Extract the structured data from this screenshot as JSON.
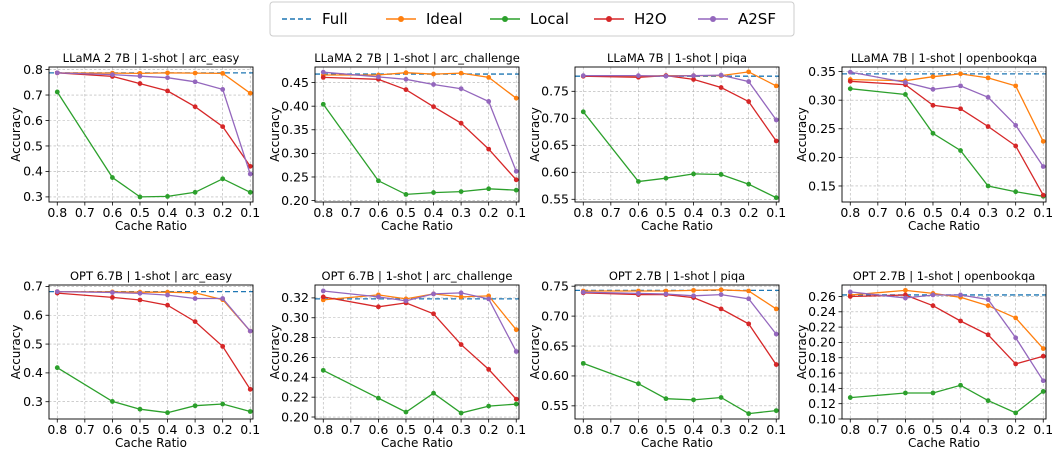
{
  "legend": {
    "entries": [
      {
        "name": "Full",
        "color": "#1f77b4",
        "style": "dashed"
      },
      {
        "name": "Ideal",
        "color": "#ff7f0e",
        "style": "line-marker"
      },
      {
        "name": "Local",
        "color": "#2ca02c",
        "style": "line-marker"
      },
      {
        "name": "H2O",
        "color": "#d62728",
        "style": "line-marker"
      },
      {
        "name": "A2SF",
        "color": "#9467bd",
        "style": "line-marker"
      }
    ],
    "placement": "top-center"
  },
  "chart_data": [
    {
      "type": "line",
      "title": "LLaMA 2 7B | 1-shot | arc_easy",
      "xlabel": "Cache Ratio",
      "ylabel": "Accuracy",
      "x": [
        0.8,
        0.6,
        0.5,
        0.4,
        0.3,
        0.2,
        0.1
      ],
      "xticks": [
        "0.8",
        "0.7",
        "0.6",
        "0.5",
        "0.4",
        "0.3",
        "0.2",
        "0.1"
      ],
      "xlim": [
        0.83,
        0.09
      ],
      "ylim": [
        0.28,
        0.81
      ],
      "yticks": [
        "0.3",
        "0.4",
        "0.5",
        "0.6",
        "0.7",
        "0.8"
      ],
      "full": 0.787,
      "series": [
        {
          "name": "Ideal",
          "values": [
            0.787,
            0.786,
            0.785,
            0.787,
            0.786,
            0.785,
            0.707
          ]
        },
        {
          "name": "Local",
          "values": [
            0.712,
            0.376,
            0.3,
            0.302,
            0.318,
            0.371,
            0.318
          ]
        },
        {
          "name": "H2O",
          "values": [
            0.787,
            0.773,
            0.745,
            0.716,
            0.654,
            0.576,
            0.42
          ]
        },
        {
          "name": "A2SF",
          "values": [
            0.787,
            0.78,
            0.774,
            0.768,
            0.752,
            0.722,
            0.39
          ]
        }
      ],
      "grid": true
    },
    {
      "type": "line",
      "title": "LLaMA 2 7B | 1-shot | arc_challenge",
      "xlabel": "Cache Ratio",
      "ylabel": "Accuracy",
      "x": [
        0.8,
        0.6,
        0.5,
        0.4,
        0.3,
        0.2,
        0.1
      ],
      "xticks": [
        "0.8",
        "0.7",
        "0.6",
        "0.5",
        "0.4",
        "0.3",
        "0.2",
        "0.1"
      ],
      "xlim": [
        0.83,
        0.09
      ],
      "ylim": [
        0.197,
        0.483
      ],
      "yticks": [
        "0.20",
        "0.25",
        "0.30",
        "0.35",
        "0.40",
        "0.45"
      ],
      "full": 0.468,
      "series": [
        {
          "name": "Ideal",
          "values": [
            0.466,
            0.466,
            0.471,
            0.468,
            0.47,
            0.461,
            0.417
          ]
        },
        {
          "name": "Local",
          "values": [
            0.404,
            0.242,
            0.213,
            0.217,
            0.219,
            0.225,
            0.222
          ]
        },
        {
          "name": "H2O",
          "values": [
            0.461,
            0.457,
            0.435,
            0.399,
            0.364,
            0.309,
            0.244
          ]
        },
        {
          "name": "A2SF",
          "values": [
            0.472,
            0.462,
            0.457,
            0.446,
            0.437,
            0.41,
            0.262
          ]
        }
      ],
      "grid": true
    },
    {
      "type": "line",
      "title": "LLaMA 7B | 1-shot | piqa",
      "xlabel": "Cache Ratio",
      "ylabel": "Accuracy",
      "x": [
        0.8,
        0.6,
        0.5,
        0.4,
        0.3,
        0.2,
        0.1
      ],
      "xticks": [
        "0.8",
        "0.7",
        "0.6",
        "0.5",
        "0.4",
        "0.3",
        "0.2",
        "0.1"
      ],
      "xlim": [
        0.83,
        0.09
      ],
      "ylim": [
        0.545,
        0.795
      ],
      "yticks": [
        "0.55",
        "0.60",
        "0.65",
        "0.70",
        "0.75"
      ],
      "full": 0.778,
      "series": [
        {
          "name": "Ideal",
          "values": [
            0.778,
            0.778,
            0.779,
            0.779,
            0.779,
            0.786,
            0.76
          ]
        },
        {
          "name": "Local",
          "values": [
            0.712,
            0.583,
            0.589,
            0.597,
            0.596,
            0.578,
            0.553
          ]
        },
        {
          "name": "H2O",
          "values": [
            0.778,
            0.776,
            0.779,
            0.772,
            0.757,
            0.731,
            0.658
          ]
        },
        {
          "name": "A2SF",
          "values": [
            0.779,
            0.779,
            0.778,
            0.779,
            0.78,
            0.768,
            0.697
          ]
        }
      ],
      "grid": true
    },
    {
      "type": "line",
      "title": "LLaMA 7B | 1-shot | openbookqa",
      "xlabel": "Cache Ratio",
      "ylabel": "Accuracy",
      "x": [
        0.8,
        0.6,
        0.5,
        0.4,
        0.3,
        0.2,
        0.1
      ],
      "xticks": [
        "0.8",
        "0.7",
        "0.6",
        "0.5",
        "0.4",
        "0.3",
        "0.2",
        "0.1"
      ],
      "xlim": [
        0.83,
        0.09
      ],
      "ylim": [
        0.122,
        0.358
      ],
      "yticks": [
        "0.15",
        "0.20",
        "0.25",
        "0.30",
        "0.35"
      ],
      "full": 0.346,
      "series": [
        {
          "name": "Ideal",
          "values": [
            0.336,
            0.334,
            0.341,
            0.346,
            0.339,
            0.325,
            0.228
          ]
        },
        {
          "name": "Local",
          "values": [
            0.32,
            0.31,
            0.242,
            0.212,
            0.15,
            0.14,
            0.132
          ]
        },
        {
          "name": "H2O",
          "values": [
            0.333,
            0.327,
            0.291,
            0.285,
            0.254,
            0.22,
            0.134
          ]
        },
        {
          "name": "A2SF",
          "values": [
            0.349,
            0.331,
            0.319,
            0.325,
            0.305,
            0.256,
            0.184
          ]
        }
      ],
      "grid": true
    },
    {
      "type": "line",
      "title": "OPT 6.7B | 1-shot | arc_easy",
      "xlabel": "Cache Ratio",
      "ylabel": "Accuracy",
      "x": [
        0.8,
        0.6,
        0.5,
        0.4,
        0.3,
        0.2,
        0.1
      ],
      "xticks": [
        "0.8",
        "0.7",
        "0.6",
        "0.5",
        "0.4",
        "0.3",
        "0.2",
        "0.1"
      ],
      "xlim": [
        0.83,
        0.09
      ],
      "ylim": [
        0.24,
        0.705
      ],
      "yticks": [
        "0.3",
        "0.4",
        "0.5",
        "0.6",
        "0.7"
      ],
      "full": 0.682,
      "series": [
        {
          "name": "Ideal",
          "values": [
            0.682,
            0.681,
            0.68,
            0.68,
            0.678,
            0.654,
            0.545
          ]
        },
        {
          "name": "Local",
          "values": [
            0.418,
            0.301,
            0.274,
            0.262,
            0.286,
            0.292,
            0.266
          ]
        },
        {
          "name": "H2O",
          "values": [
            0.677,
            0.662,
            0.653,
            0.635,
            0.578,
            0.492,
            0.343
          ]
        },
        {
          "name": "A2SF",
          "values": [
            0.682,
            0.679,
            0.676,
            0.67,
            0.658,
            0.658,
            0.545
          ]
        }
      ],
      "grid": true
    },
    {
      "type": "line",
      "title": "OPT 6.7B | 1-shot | arc_challenge",
      "xlabel": "Cache Ratio",
      "ylabel": "Accuracy",
      "x": [
        0.8,
        0.6,
        0.5,
        0.4,
        0.3,
        0.2,
        0.1
      ],
      "xticks": [
        "0.8",
        "0.7",
        "0.6",
        "0.5",
        "0.4",
        "0.3",
        "0.2",
        "0.1"
      ],
      "xlim": [
        0.83,
        0.09
      ],
      "ylim": [
        0.198,
        0.333
      ],
      "yticks": [
        "0.20",
        "0.22",
        "0.24",
        "0.26",
        "0.28",
        "0.30",
        "0.32"
      ],
      "full": 0.319,
      "series": [
        {
          "name": "Ideal",
          "values": [
            0.318,
            0.323,
            0.319,
            0.324,
            0.321,
            0.322,
            0.288
          ]
        },
        {
          "name": "Local",
          "values": [
            0.247,
            0.219,
            0.205,
            0.224,
            0.204,
            0.211,
            0.213
          ]
        },
        {
          "name": "H2O",
          "values": [
            0.321,
            0.311,
            0.315,
            0.304,
            0.273,
            0.248,
            0.218
          ]
        },
        {
          "name": "A2SF",
          "values": [
            0.327,
            0.321,
            0.317,
            0.324,
            0.325,
            0.319,
            0.266
          ]
        }
      ],
      "grid": true
    },
    {
      "type": "line",
      "title": "OPT 2.7B | 1-shot | piqa",
      "xlabel": "Cache Ratio",
      "ylabel": "Accuracy",
      "x": [
        0.8,
        0.6,
        0.5,
        0.4,
        0.3,
        0.2,
        0.1
      ],
      "xticks": [
        "0.8",
        "0.7",
        "0.6",
        "0.5",
        "0.4",
        "0.3",
        "0.2",
        "0.1"
      ],
      "xlim": [
        0.83,
        0.09
      ],
      "ylim": [
        0.528,
        0.752
      ],
      "yticks": [
        "0.55",
        "0.60",
        "0.65",
        "0.70",
        "0.75"
      ],
      "full": 0.743,
      "series": [
        {
          "name": "Ideal",
          "values": [
            0.742,
            0.742,
            0.742,
            0.743,
            0.744,
            0.742,
            0.712
          ]
        },
        {
          "name": "Local",
          "values": [
            0.621,
            0.587,
            0.562,
            0.56,
            0.564,
            0.537,
            0.542
          ]
        },
        {
          "name": "H2O",
          "values": [
            0.739,
            0.736,
            0.736,
            0.731,
            0.712,
            0.687,
            0.619
          ]
        },
        {
          "name": "A2SF",
          "values": [
            0.74,
            0.738,
            0.737,
            0.734,
            0.736,
            0.729,
            0.67
          ]
        }
      ],
      "grid": true
    },
    {
      "type": "line",
      "title": "OPT 2.7B | 1-shot | openbookqa",
      "xlabel": "Cache Ratio",
      "ylabel": "Accuracy",
      "x": [
        0.8,
        0.6,
        0.5,
        0.4,
        0.3,
        0.2,
        0.1
      ],
      "xticks": [
        "0.8",
        "0.7",
        "0.6",
        "0.5",
        "0.4",
        "0.3",
        "0.2",
        "0.1"
      ],
      "xlim": [
        0.83,
        0.09
      ],
      "ylim": [
        0.1,
        0.275
      ],
      "yticks": [
        "0.10",
        "0.12",
        "0.14",
        "0.16",
        "0.18",
        "0.20",
        "0.22",
        "0.24",
        "0.26"
      ],
      "full": 0.262,
      "series": [
        {
          "name": "Ideal",
          "values": [
            0.262,
            0.268,
            0.264,
            0.259,
            0.248,
            0.232,
            0.192
          ]
        },
        {
          "name": "Local",
          "values": [
            0.128,
            0.134,
            0.134,
            0.144,
            0.124,
            0.108,
            0.136
          ]
        },
        {
          "name": "H2O",
          "values": [
            0.26,
            0.262,
            0.248,
            0.228,
            0.21,
            0.172,
            0.182
          ]
        },
        {
          "name": "A2SF",
          "values": [
            0.266,
            0.258,
            0.262,
            0.262,
            0.256,
            0.206,
            0.15
          ]
        }
      ],
      "grid": true
    }
  ]
}
